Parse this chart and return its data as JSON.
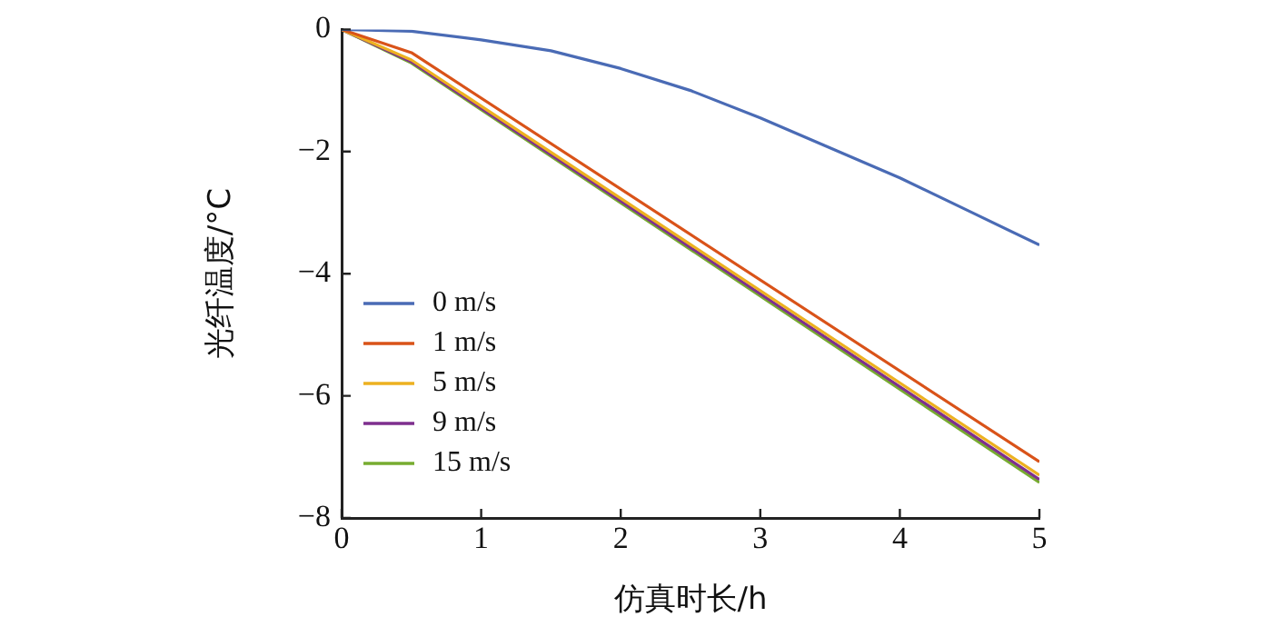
{
  "chart_data": {
    "type": "line",
    "xlabel": "仿真时长/h",
    "ylabel": "光纤温度/°C",
    "x": [
      0,
      0.5,
      1,
      1.5,
      2,
      2.5,
      3,
      3.5,
      4,
      4.5,
      5
    ],
    "xlim": [
      0,
      5
    ],
    "xticks": [
      0,
      1,
      2,
      3,
      4,
      5
    ],
    "ylim": [
      -8,
      0
    ],
    "yticks": [
      {
        "value": -8,
        "label": "−8"
      },
      {
        "value": -6,
        "label": "−6"
      },
      {
        "value": -4,
        "label": "−4"
      },
      {
        "value": -2,
        "label": "−2"
      },
      0
    ],
    "grid": false,
    "legend": "left",
    "marker": "none",
    "line_style": "solid",
    "series": [
      {
        "name": "0 m/s",
        "color": "#4a6bb5",
        "values": [
          0,
          -0.03,
          -0.17,
          -0.35,
          -0.64,
          -1.0,
          -1.45,
          -1.94,
          -2.43,
          -2.98,
          -3.53
        ]
      },
      {
        "name": "1 m/s",
        "color": "#d95319",
        "x": [
          0,
          0.5,
          5
        ],
        "values": [
          0,
          -0.38,
          -7.08
        ]
      },
      {
        "name": "5 m/s",
        "color": "#edb120",
        "x": [
          0,
          0.5,
          5
        ],
        "values": [
          0,
          -0.5,
          -7.3
        ]
      },
      {
        "name": "9 m/s",
        "color": "#7e2f8e",
        "x": [
          0,
          0.5,
          5
        ],
        "values": [
          0,
          -0.53,
          -7.37
        ]
      },
      {
        "name": "15 m/s",
        "color": "#77ac30",
        "x": [
          0,
          0.5,
          5
        ],
        "values": [
          0,
          -0.55,
          -7.42
        ]
      }
    ]
  }
}
